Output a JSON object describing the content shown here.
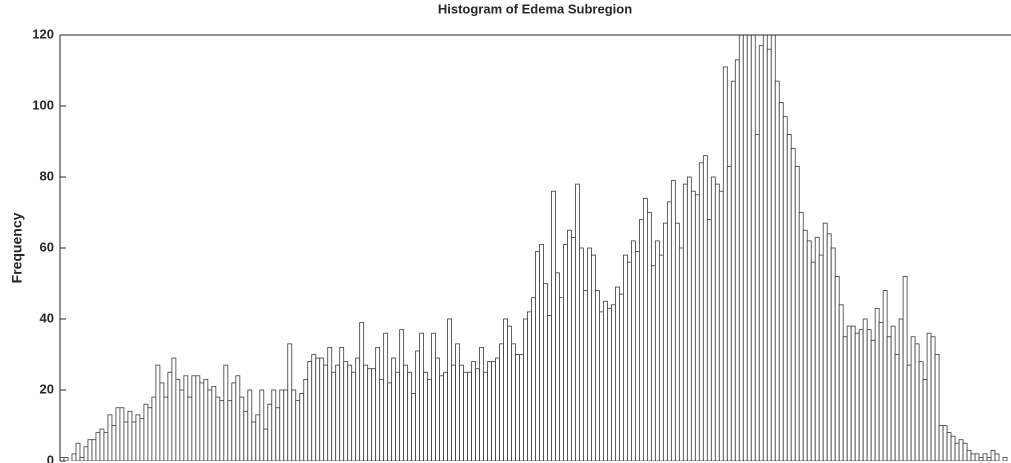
{
  "chart_data": {
    "type": "bar",
    "title": "Histogram of Edema Subregion",
    "y_label": "Frequency",
    "categories": [
      null,
      null,
      null,
      null,
      null,
      null,
      null,
      null,
      null,
      null,
      null,
      null,
      null,
      null,
      null,
      null,
      null,
      null,
      null,
      null,
      null,
      null,
      null,
      null,
      null,
      null,
      null,
      null,
      null,
      null,
      null,
      null,
      null,
      null,
      null,
      null,
      null,
      null,
      null,
      null,
      null,
      null,
      null,
      null,
      null,
      null,
      null,
      null,
      null,
      null,
      null,
      null,
      null,
      null,
      null,
      null,
      null,
      null,
      null,
      null,
      null,
      null,
      null,
      null,
      null,
      null,
      null,
      null,
      null,
      null,
      null,
      null,
      null,
      null,
      null,
      null,
      null,
      null,
      null,
      null,
      null,
      null,
      null,
      null,
      null,
      null,
      null,
      null,
      null,
      null,
      null,
      null,
      null,
      null,
      null,
      null,
      null,
      null,
      null,
      null,
      null,
      null,
      null,
      null,
      null,
      null,
      null,
      null,
      null,
      null,
      null,
      null,
      null,
      null,
      null,
      null,
      null,
      null,
      null,
      null,
      null,
      null,
      null,
      null,
      null,
      null,
      null,
      null,
      null,
      null,
      null,
      null,
      null,
      null,
      null,
      null,
      null,
      null,
      null,
      null,
      null,
      null,
      null,
      null,
      null,
      null,
      null,
      null,
      null,
      null,
      null,
      null,
      null,
      null,
      null,
      null,
      null,
      null,
      null,
      null,
      null,
      null,
      null,
      null,
      null,
      null,
      null,
      null,
      null,
      null,
      null,
      null,
      null,
      null,
      null,
      null,
      null,
      null,
      null,
      null,
      null,
      null,
      null,
      null,
      null,
      null,
      null,
      null,
      null,
      null,
      null,
      null,
      null,
      null,
      null,
      null,
      null,
      null,
      null,
      null,
      null,
      null,
      null,
      null,
      null,
      null,
      null,
      null,
      null,
      null,
      null,
      null,
      null,
      null,
      null,
      null,
      null,
      null,
      null,
      null,
      null,
      null,
      null,
      null,
      null,
      null,
      null,
      null,
      null,
      null,
      null,
      null,
      null,
      null,
      null,
      null,
      null,
      null
    ],
    "values": [
      1,
      1,
      0,
      2,
      5,
      1,
      4,
      6,
      6,
      8,
      9,
      8,
      13,
      10,
      15,
      15,
      11,
      14,
      11,
      13,
      12,
      16,
      15,
      18,
      27,
      22,
      18,
      25,
      29,
      23,
      20,
      24,
      18,
      24,
      24,
      22,
      23,
      20,
      21,
      18,
      17,
      27,
      17,
      22,
      24,
      18,
      14,
      20,
      11,
      13,
      20,
      9,
      16,
      20,
      15,
      20,
      20,
      33,
      20,
      17,
      19,
      23,
      28,
      30,
      29,
      29,
      27,
      32,
      25,
      27,
      32,
      28,
      27,
      25,
      29,
      39,
      27,
      26,
      26,
      32,
      23,
      36,
      22,
      29,
      25,
      37,
      27,
      25,
      19,
      31,
      36,
      25,
      23,
      36,
      29,
      24,
      25,
      40,
      27,
      33,
      27,
      25,
      25,
      28,
      26,
      32,
      25,
      28,
      28,
      29,
      33,
      40,
      38,
      33,
      30,
      30,
      40,
      42,
      46,
      59,
      61,
      50,
      41,
      76,
      53,
      46,
      61,
      65,
      63,
      78,
      60,
      48,
      60,
      58,
      48,
      42,
      45,
      43,
      44,
      49,
      47,
      58,
      56,
      62,
      59,
      68,
      74,
      70,
      55,
      62,
      58,
      67,
      73,
      79,
      67,
      60,
      78,
      80,
      76,
      75,
      84,
      86,
      68,
      80,
      78,
      76,
      111,
      83,
      107,
      113,
      125,
      120,
      125,
      123,
      92,
      117,
      123,
      116,
      125,
      107,
      101,
      97,
      92,
      88,
      83,
      70,
      65,
      62,
      56,
      63,
      58,
      67,
      64,
      60,
      52,
      44,
      35,
      38,
      38,
      36,
      37,
      40,
      37,
      34,
      43,
      39,
      48,
      35,
      38,
      30,
      40,
      52,
      27,
      35,
      33,
      28,
      23,
      36,
      35,
      30,
      10,
      10,
      8,
      7,
      5,
      6,
      5,
      3,
      2,
      2,
      1,
      2,
      1,
      3,
      2,
      0,
      1,
      0
    ],
    "color": "#ffffff",
    "edge_color": "#3a3a3a",
    "ylim": [
      0,
      120
    ],
    "yticks": [
      0,
      20,
      40,
      60,
      80,
      100,
      120
    ],
    "grid": false
  }
}
